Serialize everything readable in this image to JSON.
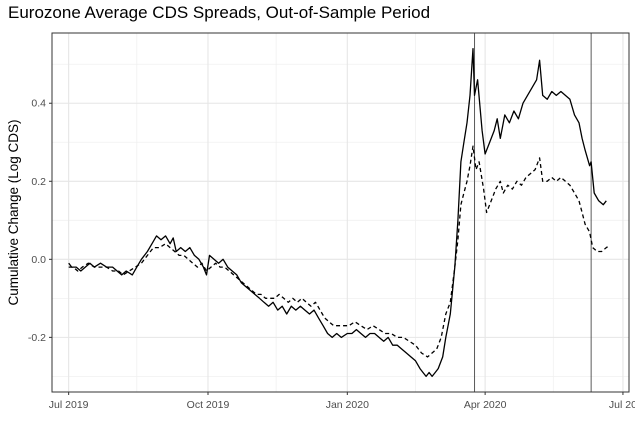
{
  "chart_data": {
    "type": "line",
    "title": "Eurozone Average CDS Spreads, Out-of-Sample Period",
    "xlabel": "",
    "ylabel": "Cumulative Change (Log CDS)",
    "x_ticks": [
      "Jul 2019",
      "Oct 2019",
      "Jan 2020",
      "Apr 2020",
      "Jul 20"
    ],
    "y_ticks": [
      -0.2,
      0.0,
      0.2,
      0.4
    ],
    "y_tick_labels": [
      "-0.2",
      "0.0",
      "0.2",
      "0.4"
    ],
    "xlim": [
      "2019-06-20",
      "2020-07-05"
    ],
    "ylim": [
      -0.34,
      0.58
    ],
    "grid": true,
    "vertical_lines": [
      "2020-03-25",
      "2020-06-10"
    ],
    "series": [
      {
        "style": "solid",
        "color": "#000000",
        "points": [
          [
            "2019-07-01",
            -0.01
          ],
          [
            "2019-07-03",
            -0.02
          ],
          [
            "2019-07-06",
            -0.02
          ],
          [
            "2019-07-09",
            -0.03
          ],
          [
            "2019-07-12",
            -0.02
          ],
          [
            "2019-07-15",
            -0.01
          ],
          [
            "2019-07-18",
            -0.02
          ],
          [
            "2019-07-22",
            -0.01
          ],
          [
            "2019-07-26",
            -0.02
          ],
          [
            "2019-07-30",
            -0.02
          ],
          [
            "2019-08-02",
            -0.03
          ],
          [
            "2019-08-05",
            -0.04
          ],
          [
            "2019-08-08",
            -0.03
          ],
          [
            "2019-08-12",
            -0.04
          ],
          [
            "2019-08-15",
            -0.02
          ],
          [
            "2019-08-18",
            0.0
          ],
          [
            "2019-08-22",
            0.02
          ],
          [
            "2019-08-25",
            0.04
          ],
          [
            "2019-08-28",
            0.06
          ],
          [
            "2019-08-31",
            0.05
          ],
          [
            "2019-09-03",
            0.06
          ],
          [
            "2019-09-06",
            0.04
          ],
          [
            "2019-09-08",
            0.055
          ],
          [
            "2019-09-10",
            0.02
          ],
          [
            "2019-09-13",
            0.03
          ],
          [
            "2019-09-16",
            0.02
          ],
          [
            "2019-09-19",
            0.03
          ],
          [
            "2019-09-22",
            0.01
          ],
          [
            "2019-09-25",
            0.0
          ],
          [
            "2019-09-28",
            -0.02
          ],
          [
            "2019-09-30",
            -0.04
          ],
          [
            "2019-10-02",
            0.01
          ],
          [
            "2019-10-05",
            0.0
          ],
          [
            "2019-10-08",
            -0.01
          ],
          [
            "2019-10-11",
            0.0
          ],
          [
            "2019-10-14",
            -0.02
          ],
          [
            "2019-10-17",
            -0.03
          ],
          [
            "2019-10-20",
            -0.04
          ],
          [
            "2019-10-23",
            -0.06
          ],
          [
            "2019-10-26",
            -0.07
          ],
          [
            "2019-10-29",
            -0.08
          ],
          [
            "2019-11-01",
            -0.09
          ],
          [
            "2019-11-04",
            -0.1
          ],
          [
            "2019-11-07",
            -0.11
          ],
          [
            "2019-11-10",
            -0.12
          ],
          [
            "2019-11-13",
            -0.11
          ],
          [
            "2019-11-16",
            -0.13
          ],
          [
            "2019-11-19",
            -0.12
          ],
          [
            "2019-11-22",
            -0.14
          ],
          [
            "2019-11-25",
            -0.12
          ],
          [
            "2019-11-28",
            -0.13
          ],
          [
            "2019-12-01",
            -0.12
          ],
          [
            "2019-12-04",
            -0.13
          ],
          [
            "2019-12-07",
            -0.14
          ],
          [
            "2019-12-10",
            -0.13
          ],
          [
            "2019-12-13",
            -0.15
          ],
          [
            "2019-12-16",
            -0.17
          ],
          [
            "2019-12-19",
            -0.19
          ],
          [
            "2019-12-22",
            -0.2
          ],
          [
            "2019-12-25",
            -0.19
          ],
          [
            "2019-12-28",
            -0.2
          ],
          [
            "2020-01-01",
            -0.19
          ],
          [
            "2020-01-04",
            -0.19
          ],
          [
            "2020-01-07",
            -0.18
          ],
          [
            "2020-01-10",
            -0.19
          ],
          [
            "2020-01-13",
            -0.2
          ],
          [
            "2020-01-16",
            -0.19
          ],
          [
            "2020-01-19",
            -0.19
          ],
          [
            "2020-01-22",
            -0.2
          ],
          [
            "2020-01-25",
            -0.21
          ],
          [
            "2020-01-28",
            -0.2
          ],
          [
            "2020-01-31",
            -0.22
          ],
          [
            "2020-02-03",
            -0.22
          ],
          [
            "2020-02-06",
            -0.23
          ],
          [
            "2020-02-09",
            -0.24
          ],
          [
            "2020-02-12",
            -0.25
          ],
          [
            "2020-02-15",
            -0.26
          ],
          [
            "2020-02-18",
            -0.28
          ],
          [
            "2020-02-20",
            -0.29
          ],
          [
            "2020-02-22",
            -0.3
          ],
          [
            "2020-02-24",
            -0.29
          ],
          [
            "2020-02-26",
            -0.3
          ],
          [
            "2020-02-28",
            -0.29
          ],
          [
            "2020-03-01",
            -0.28
          ],
          [
            "2020-03-04",
            -0.25
          ],
          [
            "2020-03-06",
            -0.2
          ],
          [
            "2020-03-09",
            -0.14
          ],
          [
            "2020-03-12",
            -0.02
          ],
          [
            "2020-03-14",
            0.1
          ],
          [
            "2020-03-16",
            0.25
          ],
          [
            "2020-03-18",
            0.3
          ],
          [
            "2020-03-20",
            0.35
          ],
          [
            "2020-03-22",
            0.42
          ],
          [
            "2020-03-24",
            0.54
          ],
          [
            "2020-03-25",
            0.42
          ],
          [
            "2020-03-27",
            0.46
          ],
          [
            "2020-03-30",
            0.33
          ],
          [
            "2020-04-01",
            0.27
          ],
          [
            "2020-04-04",
            0.3
          ],
          [
            "2020-04-07",
            0.33
          ],
          [
            "2020-04-09",
            0.36
          ],
          [
            "2020-04-11",
            0.31
          ],
          [
            "2020-04-14",
            0.37
          ],
          [
            "2020-04-17",
            0.35
          ],
          [
            "2020-04-20",
            0.38
          ],
          [
            "2020-04-23",
            0.36
          ],
          [
            "2020-04-26",
            0.4
          ],
          [
            "2020-04-29",
            0.42
          ],
          [
            "2020-05-02",
            0.44
          ],
          [
            "2020-05-05",
            0.46
          ],
          [
            "2020-05-07",
            0.51
          ],
          [
            "2020-05-09",
            0.42
          ],
          [
            "2020-05-12",
            0.41
          ],
          [
            "2020-05-15",
            0.43
          ],
          [
            "2020-05-18",
            0.42
          ],
          [
            "2020-05-21",
            0.43
          ],
          [
            "2020-05-24",
            0.42
          ],
          [
            "2020-05-27",
            0.41
          ],
          [
            "2020-05-30",
            0.37
          ],
          [
            "2020-06-02",
            0.35
          ],
          [
            "2020-06-04",
            0.31
          ],
          [
            "2020-06-06",
            0.28
          ],
          [
            "2020-06-09",
            0.24
          ],
          [
            "2020-06-10",
            0.25
          ],
          [
            "2020-06-12",
            0.17
          ],
          [
            "2020-06-15",
            0.15
          ],
          [
            "2020-06-18",
            0.14
          ],
          [
            "2020-06-20",
            0.15
          ]
        ]
      },
      {
        "style": "dashed",
        "color": "#000000",
        "points": [
          [
            "2019-07-01",
            -0.02
          ],
          [
            "2019-07-04",
            -0.02
          ],
          [
            "2019-07-07",
            -0.03
          ],
          [
            "2019-07-10",
            -0.02
          ],
          [
            "2019-07-14",
            -0.01
          ],
          [
            "2019-07-18",
            -0.02
          ],
          [
            "2019-07-22",
            -0.02
          ],
          [
            "2019-07-26",
            -0.02
          ],
          [
            "2019-07-30",
            -0.03
          ],
          [
            "2019-08-03",
            -0.03
          ],
          [
            "2019-08-06",
            -0.04
          ],
          [
            "2019-08-10",
            -0.03
          ],
          [
            "2019-08-14",
            -0.02
          ],
          [
            "2019-08-18",
            -0.01
          ],
          [
            "2019-08-22",
            0.01
          ],
          [
            "2019-08-26",
            0.03
          ],
          [
            "2019-08-30",
            0.03
          ],
          [
            "2019-09-03",
            0.04
          ],
          [
            "2019-09-06",
            0.03
          ],
          [
            "2019-09-09",
            0.02
          ],
          [
            "2019-09-12",
            0.01
          ],
          [
            "2019-09-15",
            0.01
          ],
          [
            "2019-09-18",
            0.0
          ],
          [
            "2019-09-21",
            -0.01
          ],
          [
            "2019-09-24",
            -0.02
          ],
          [
            "2019-09-27",
            -0.01
          ],
          [
            "2019-09-30",
            -0.03
          ],
          [
            "2019-10-03",
            -0.02
          ],
          [
            "2019-10-06",
            -0.01
          ],
          [
            "2019-10-09",
            -0.02
          ],
          [
            "2019-10-12",
            -0.02
          ],
          [
            "2019-10-15",
            -0.03
          ],
          [
            "2019-10-18",
            -0.04
          ],
          [
            "2019-10-21",
            -0.05
          ],
          [
            "2019-10-24",
            -0.06
          ],
          [
            "2019-10-27",
            -0.07
          ],
          [
            "2019-10-30",
            -0.08
          ],
          [
            "2019-11-02",
            -0.09
          ],
          [
            "2019-11-05",
            -0.09
          ],
          [
            "2019-11-08",
            -0.1
          ],
          [
            "2019-11-11",
            -0.1
          ],
          [
            "2019-11-14",
            -0.1
          ],
          [
            "2019-11-17",
            -0.09
          ],
          [
            "2019-11-20",
            -0.1
          ],
          [
            "2019-11-23",
            -0.11
          ],
          [
            "2019-11-26",
            -0.1
          ],
          [
            "2019-11-29",
            -0.11
          ],
          [
            "2019-12-02",
            -0.1
          ],
          [
            "2019-12-05",
            -0.11
          ],
          [
            "2019-12-08",
            -0.12
          ],
          [
            "2019-12-11",
            -0.11
          ],
          [
            "2019-12-14",
            -0.13
          ],
          [
            "2019-12-17",
            -0.15
          ],
          [
            "2019-12-20",
            -0.16
          ],
          [
            "2019-12-23",
            -0.17
          ],
          [
            "2019-12-26",
            -0.17
          ],
          [
            "2019-12-29",
            -0.17
          ],
          [
            "2020-01-02",
            -0.17
          ],
          [
            "2020-01-06",
            -0.16
          ],
          [
            "2020-01-10",
            -0.17
          ],
          [
            "2020-01-14",
            -0.18
          ],
          [
            "2020-01-18",
            -0.17
          ],
          [
            "2020-01-22",
            -0.18
          ],
          [
            "2020-01-26",
            -0.19
          ],
          [
            "2020-01-30",
            -0.19
          ],
          [
            "2020-02-03",
            -0.2
          ],
          [
            "2020-02-07",
            -0.2
          ],
          [
            "2020-02-11",
            -0.21
          ],
          [
            "2020-02-15",
            -0.22
          ],
          [
            "2020-02-19",
            -0.24
          ],
          [
            "2020-02-23",
            -0.25
          ],
          [
            "2020-02-26",
            -0.24
          ],
          [
            "2020-02-29",
            -0.23
          ],
          [
            "2020-03-03",
            -0.2
          ],
          [
            "2020-03-06",
            -0.14
          ],
          [
            "2020-03-09",
            -0.11
          ],
          [
            "2020-03-12",
            -0.02
          ],
          [
            "2020-03-14",
            0.05
          ],
          [
            "2020-03-16",
            0.14
          ],
          [
            "2020-03-18",
            0.17
          ],
          [
            "2020-03-20",
            0.2
          ],
          [
            "2020-03-22",
            0.24
          ],
          [
            "2020-03-24",
            0.29
          ],
          [
            "2020-03-26",
            0.23
          ],
          [
            "2020-03-28",
            0.25
          ],
          [
            "2020-03-31",
            0.18
          ],
          [
            "2020-04-02",
            0.12
          ],
          [
            "2020-04-05",
            0.15
          ],
          [
            "2020-04-08",
            0.18
          ],
          [
            "2020-04-11",
            0.2
          ],
          [
            "2020-04-13",
            0.17
          ],
          [
            "2020-04-16",
            0.19
          ],
          [
            "2020-04-19",
            0.18
          ],
          [
            "2020-04-22",
            0.2
          ],
          [
            "2020-04-25",
            0.19
          ],
          [
            "2020-04-28",
            0.21
          ],
          [
            "2020-05-01",
            0.22
          ],
          [
            "2020-05-04",
            0.23
          ],
          [
            "2020-05-07",
            0.26
          ],
          [
            "2020-05-09",
            0.2
          ],
          [
            "2020-05-12",
            0.2
          ],
          [
            "2020-05-15",
            0.21
          ],
          [
            "2020-05-18",
            0.2
          ],
          [
            "2020-05-21",
            0.21
          ],
          [
            "2020-05-24",
            0.2
          ],
          [
            "2020-05-27",
            0.19
          ],
          [
            "2020-05-30",
            0.17
          ],
          [
            "2020-06-02",
            0.15
          ],
          [
            "2020-06-04",
            0.12
          ],
          [
            "2020-06-06",
            0.09
          ],
          [
            "2020-06-09",
            0.07
          ],
          [
            "2020-06-11",
            0.03
          ],
          [
            "2020-06-14",
            0.02
          ],
          [
            "2020-06-17",
            0.02
          ],
          [
            "2020-06-20",
            0.03
          ],
          [
            "2020-06-22",
            0.035
          ]
        ]
      }
    ]
  }
}
